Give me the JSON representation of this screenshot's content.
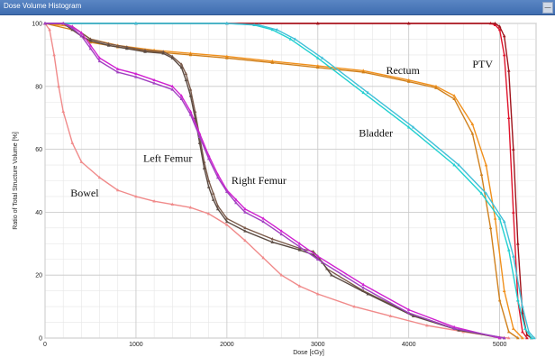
{
  "window": {
    "title": "Dose Volume Histogram",
    "control": "—"
  },
  "chart_data": {
    "type": "line",
    "title": "",
    "xlabel": "Dose [cGy]",
    "ylabel": "Ratio of Total Structure Volume [%]",
    "xlim": [
      0,
      5400
    ],
    "ylim": [
      0,
      100
    ],
    "xticks": [
      0,
      1000,
      2000,
      3000,
      4000,
      5000
    ],
    "yticks": [
      0,
      20,
      40,
      60,
      80,
      100
    ],
    "grid": true,
    "series": [
      {
        "name": "PTV",
        "color": "#e0142c",
        "x": [
          0,
          1000,
          2000,
          3000,
          4000,
          4900,
          4950,
          5000,
          5050,
          5100,
          5150,
          5200,
          5250,
          5300
        ],
        "y": [
          100,
          100,
          100,
          100,
          100,
          100,
          99.5,
          98,
          90,
          70,
          40,
          12,
          2,
          0
        ]
      },
      {
        "name": "PTV",
        "color": "#a0141c",
        "x": [
          0,
          1000,
          2000,
          3000,
          4000,
          4950,
          5000,
          5050,
          5100,
          5150,
          5200,
          5250,
          5300,
          5350
        ],
        "y": [
          100,
          100,
          100,
          100,
          100,
          100,
          99,
          96,
          85,
          60,
          30,
          8,
          1,
          0
        ]
      },
      {
        "name": "Rectum",
        "color": "#f0901c",
        "x": [
          0,
          300,
          500,
          800,
          1200,
          1600,
          2000,
          2500,
          3000,
          3500,
          4000,
          4300,
          4500,
          4700,
          4850,
          4950,
          5050,
          5150,
          5250
        ],
        "y": [
          100,
          99,
          95,
          93,
          91.5,
          90.5,
          89.5,
          88,
          86.5,
          85,
          82,
          80,
          77,
          68,
          55,
          38,
          15,
          3,
          0
        ]
      },
      {
        "name": "Rectum",
        "color": "#d0801c",
        "x": [
          0,
          300,
          500,
          800,
          1200,
          1600,
          2000,
          2500,
          3000,
          3500,
          4000,
          4300,
          4500,
          4700,
          4800,
          4900,
          5000,
          5100,
          5200
        ],
        "y": [
          100,
          98,
          94,
          92.5,
          91,
          90,
          89,
          87.5,
          86,
          84.5,
          81.5,
          79.5,
          76,
          65,
          52,
          35,
          12,
          2,
          0
        ]
      },
      {
        "name": "Bladder",
        "color": "#20d0d0",
        "x": [
          0,
          1000,
          2000,
          2300,
          2500,
          2700,
          3000,
          3500,
          4000,
          4500,
          4800,
          5000,
          5100,
          5200,
          5280,
          5350
        ],
        "y": [
          100,
          100,
          100,
          99.5,
          98,
          95,
          89,
          78,
          67,
          55,
          46,
          38,
          28,
          12,
          3,
          0
        ]
      },
      {
        "name": "Bladder",
        "color": "#40c0d8",
        "x": [
          0,
          1000,
          2000,
          2350,
          2550,
          2750,
          3050,
          3550,
          4050,
          4550,
          4850,
          5050,
          5150,
          5250,
          5320,
          5380
        ],
        "y": [
          100,
          100,
          100,
          99.5,
          98,
          95,
          89,
          78,
          67,
          55,
          46,
          37,
          26,
          10,
          2,
          0
        ]
      },
      {
        "name": "Bowel",
        "color": "#f08a8a",
        "x": [
          0,
          50,
          100,
          150,
          200,
          300,
          400,
          600,
          800,
          1000,
          1200,
          1400,
          1600,
          1800,
          2000,
          2200,
          2400,
          2600,
          2800,
          3000,
          3400,
          3800,
          4200,
          4600,
          5000,
          5100
        ],
        "y": [
          100,
          98,
          90,
          80,
          72,
          62,
          56,
          51,
          47,
          45,
          43.5,
          42.5,
          41.5,
          39.5,
          36,
          31,
          25.5,
          20,
          16.5,
          14,
          10,
          7,
          4,
          2,
          0.3,
          0
        ]
      },
      {
        "name": "Left Femur",
        "color": "#7a5a4a",
        "x": [
          0,
          200,
          300,
          400,
          500,
          700,
          900,
          1100,
          1300,
          1400,
          1500,
          1550,
          1600,
          1650,
          1700,
          1750,
          1800,
          1850,
          1900,
          2000,
          2200,
          2500,
          2800,
          2950,
          3000,
          3100,
          3500,
          4000,
          4500,
          5000
        ],
        "y": [
          100,
          100,
          99,
          97,
          95,
          93.5,
          92.5,
          91.5,
          91,
          89.5,
          87,
          84,
          79,
          72,
          64,
          56,
          50,
          46,
          42,
          38,
          35,
          31.5,
          28.5,
          27.5,
          26,
          22,
          15,
          8,
          3,
          0
        ]
      },
      {
        "name": "Left Femur",
        "color": "#5a4a42",
        "x": [
          0,
          200,
          300,
          400,
          500,
          700,
          900,
          1100,
          1300,
          1400,
          1500,
          1550,
          1600,
          1650,
          1700,
          1750,
          1800,
          1850,
          1900,
          2000,
          2200,
          2500,
          2800,
          2950,
          3050,
          3150,
          3550,
          4050,
          4550,
          5050
        ],
        "y": [
          100,
          100,
          98,
          96,
          94.5,
          93,
          92,
          91,
          90.5,
          89,
          86,
          82,
          77,
          70,
          62,
          54,
          48,
          44,
          41,
          37,
          34,
          30.5,
          28,
          26.5,
          24,
          20,
          14,
          7,
          2.5,
          0
        ]
      },
      {
        "name": "Right Femur",
        "color": "#d020d0",
        "x": [
          0,
          200,
          300,
          400,
          500,
          600,
          800,
          1000,
          1200,
          1400,
          1500,
          1600,
          1700,
          1800,
          1900,
          2000,
          2100,
          2200,
          2400,
          2600,
          2800,
          3000,
          3500,
          4000,
          4500,
          5000
        ],
        "y": [
          100,
          100,
          99,
          97,
          93,
          89,
          85.5,
          84,
          82,
          80,
          77,
          72,
          65,
          58,
          52,
          47,
          44,
          41,
          38,
          34,
          30,
          26,
          17,
          9,
          3.5,
          0
        ]
      },
      {
        "name": "Right Femur",
        "color": "#a040c0",
        "x": [
          0,
          200,
          300,
          400,
          500,
          600,
          800,
          1000,
          1200,
          1400,
          1500,
          1600,
          1700,
          1800,
          1900,
          2000,
          2100,
          2200,
          2400,
          2600,
          2800,
          3000,
          3500,
          4000,
          4500,
          5050
        ],
        "y": [
          100,
          100,
          98.5,
          96,
          92,
          88,
          84.5,
          83,
          81,
          79,
          76,
          71,
          64,
          57,
          51,
          46.5,
          43,
          40,
          37,
          33,
          29,
          25,
          16,
          8,
          3,
          0
        ]
      }
    ],
    "annotations": [
      {
        "text": "PTV",
        "x": 4700,
        "y": 86
      },
      {
        "text": "Rectum",
        "x": 3750,
        "y": 84
      },
      {
        "text": "Bladder",
        "x": 3450,
        "y": 64
      },
      {
        "text": "Left Femur",
        "x": 1080,
        "y": 56
      },
      {
        "text": "Right Femur",
        "x": 2050,
        "y": 49
      },
      {
        "text": "Bowel",
        "x": 280,
        "y": 45
      }
    ]
  }
}
